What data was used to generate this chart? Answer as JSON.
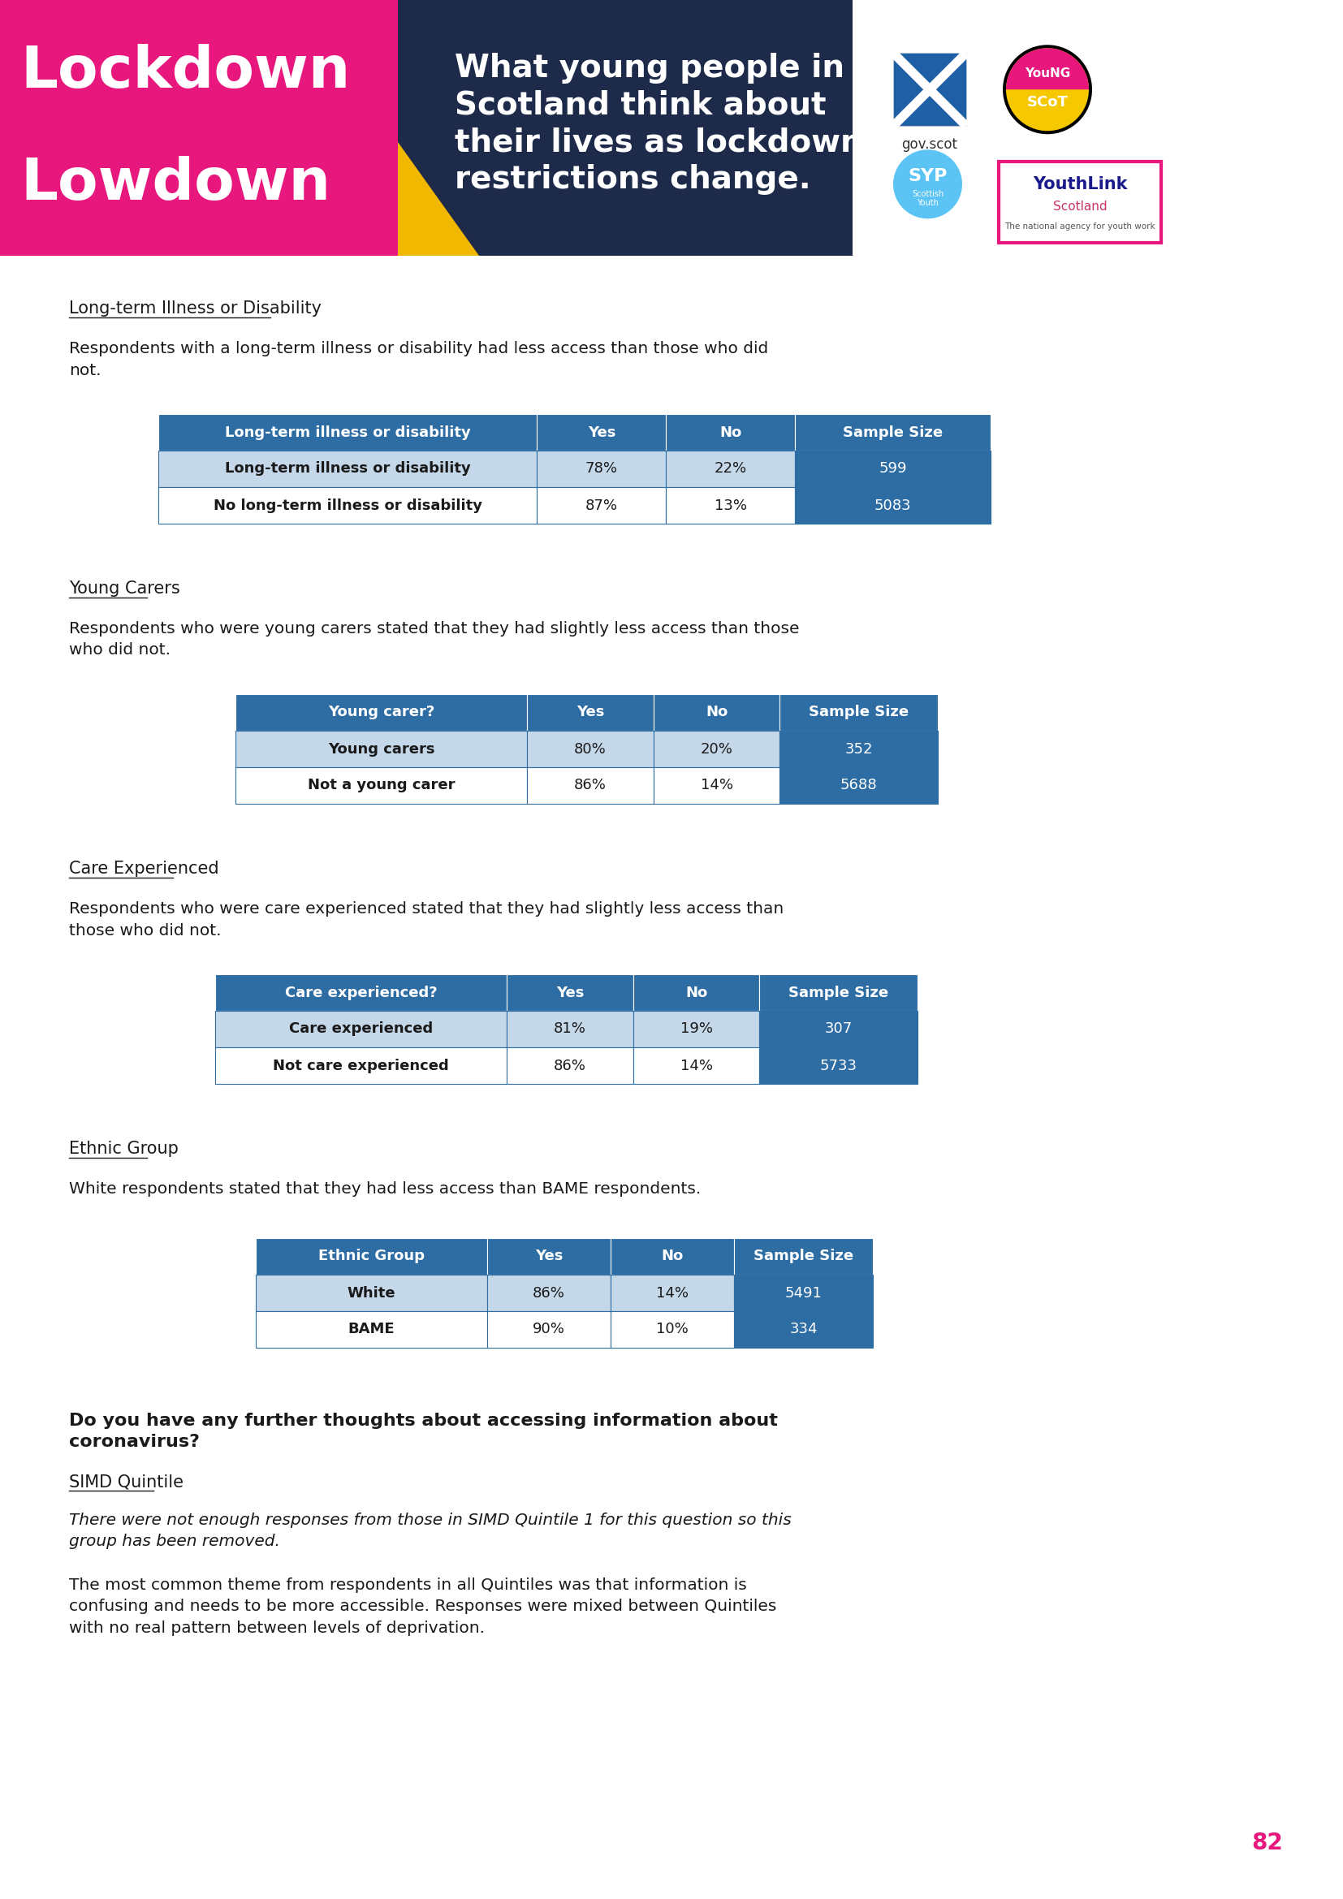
{
  "header_bg_color": "#1e2a4a",
  "header_pink_color": "#e8177d",
  "header_yellow_color": "#f0b800",
  "header_title": "What young people in\nScotland think about\ntheir lives as lockdown\nrestrictions change.",
  "lockdown_line1": "Lockdown",
  "lockdown_line2": "Lowdown",
  "page_bg": "#ffffff",
  "page_number": "82",
  "page_number_color": "#e8177d",
  "section1_heading": "Long-term Illness or Disability",
  "section1_body": "Respondents with a long-term illness or disability had less access than those who did\nnot.",
  "table1_header": [
    "Long-term illness or disability",
    "Yes",
    "No",
    "Sample Size"
  ],
  "table1_rows": [
    [
      "Long-term illness or disability",
      "78%",
      "22%",
      "599"
    ],
    [
      "No long-term illness or disability",
      "87%",
      "13%",
      "5083"
    ]
  ],
  "section2_heading": "Young Carers",
  "section2_body": "Respondents who were young carers stated that they had slightly less access than those\nwho did not.",
  "table2_header": [
    "Young carer?",
    "Yes",
    "No",
    "Sample Size"
  ],
  "table2_rows": [
    [
      "Young carers",
      "80%",
      "20%",
      "352"
    ],
    [
      "Not a young carer",
      "86%",
      "14%",
      "5688"
    ]
  ],
  "section3_heading": "Care Experienced",
  "section3_body": "Respondents who were care experienced stated that they had slightly less access than\nthose who did not.",
  "table3_header": [
    "Care experienced?",
    "Yes",
    "No",
    "Sample Size"
  ],
  "table3_rows": [
    [
      "Care experienced",
      "81%",
      "19%",
      "307"
    ],
    [
      "Not care experienced",
      "86%",
      "14%",
      "5733"
    ]
  ],
  "section4_heading": "Ethnic Group",
  "section4_body": "White respondents stated that they had less access than BAME respondents.",
  "table4_header": [
    "Ethnic Group",
    "Yes",
    "No",
    "Sample Size"
  ],
  "table4_rows": [
    [
      "White",
      "86%",
      "14%",
      "5491"
    ],
    [
      "BAME",
      "90%",
      "10%",
      "334"
    ]
  ],
  "section5_heading_bold": "Do you have any further thoughts about accessing information about\ncoronavirus?",
  "section5_subheading": "SIMD Quintile",
  "section5_italic": "There were not enough responses from those in SIMD Quintile 1 for this question so this\ngroup has been removed.",
  "section5_body": "The most common theme from respondents in all Quintiles was that information is\nconfusing and needs to be more accessible. Responses were mixed between Quintiles\nwith no real pattern between levels of deprivation.",
  "table_header_bg": "#2e6da4",
  "table_header_text": "#ffffff",
  "table_row_odd_bg": "#c5d8ea",
  "table_row_even_bg": "#ffffff",
  "table_sample_bg": "#2e6da4",
  "table_sample_text": "#ffffff",
  "table_border_color": "#2e6da4",
  "body_text_color": "#1a1a1a",
  "heading_underline_color": "#1a1a1a"
}
